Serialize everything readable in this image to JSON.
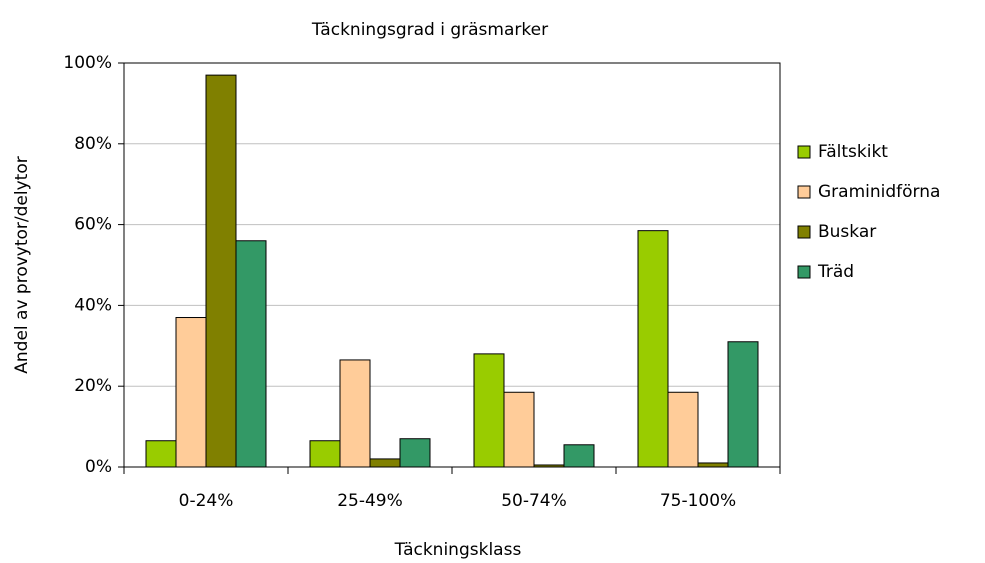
{
  "chart_data": {
    "type": "bar",
    "title": "Täckningsgrad i gräsmarker",
    "x_label": "Täckningsklass",
    "y_label": "Andel av provytor/delytor",
    "categories": [
      "0-24%",
      "25-49%",
      "50-74%",
      "75-100%"
    ],
    "series": [
      {
        "name": "Fältskikt",
        "color": "#99cc00",
        "values": [
          6.5,
          6.5,
          28,
          58.5
        ]
      },
      {
        "name": "Graminidförna",
        "color": "#ffcc99",
        "values": [
          37,
          26.5,
          18.5,
          18.5
        ]
      },
      {
        "name": "Buskar",
        "color": "#808000",
        "values": [
          97,
          2,
          0.5,
          1
        ]
      },
      {
        "name": "Träd",
        "color": "#339966",
        "values": [
          56,
          7,
          5.5,
          31
        ]
      }
    ],
    "ylim": [
      0,
      100
    ],
    "yticks": [
      {
        "value": 0,
        "label": "0%"
      },
      {
        "value": 20,
        "label": "20%"
      },
      {
        "value": 40,
        "label": "40%"
      },
      {
        "value": 60,
        "label": "60%"
      },
      {
        "value": 80,
        "label": "80%"
      },
      {
        "value": 100,
        "label": "100%"
      }
    ],
    "grid": true,
    "legend": "right"
  }
}
